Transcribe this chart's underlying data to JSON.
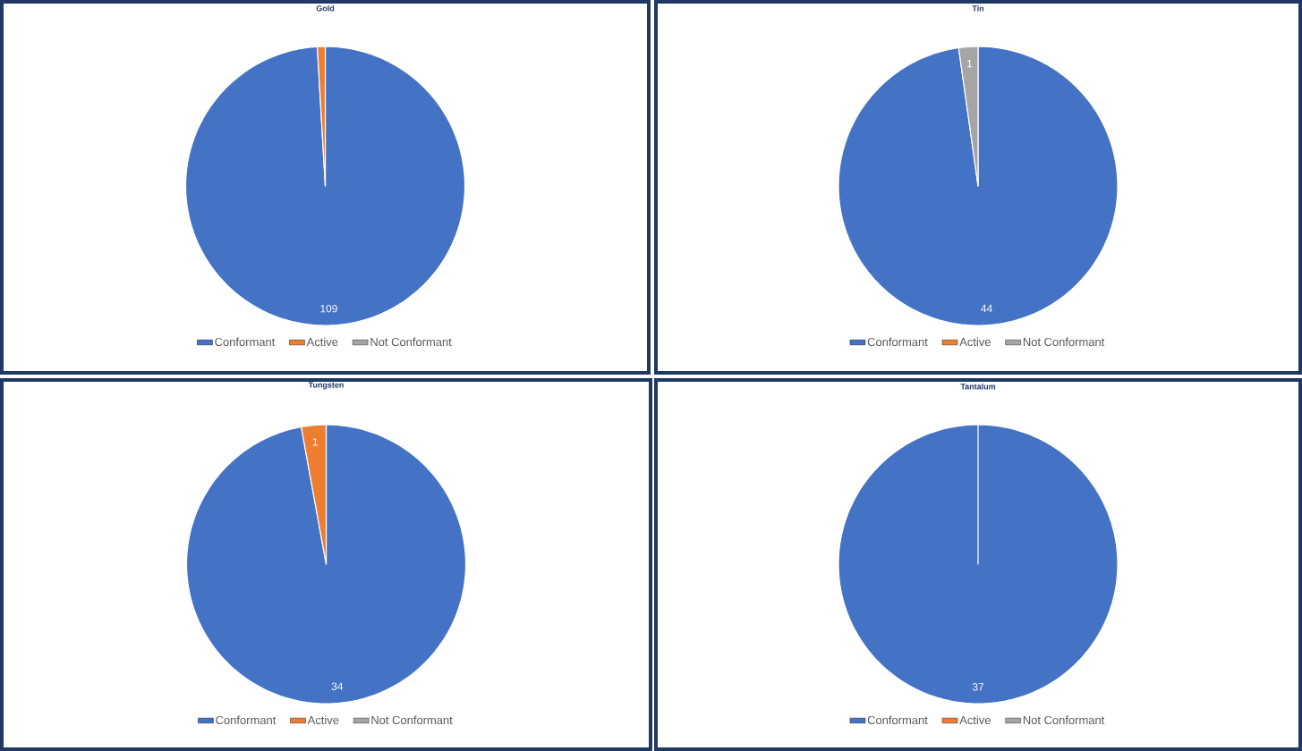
{
  "chart_data": [
    {
      "type": "pie",
      "title": "Gold",
      "categories": [
        "Conformant",
        "Active",
        "Not Conformant"
      ],
      "values": [
        109,
        1,
        0
      ],
      "colors": [
        "#4472c4",
        "#ed7d31",
        "#a5a5a5"
      ],
      "value_labels": [
        "109",
        null,
        null
      ],
      "legend": "bottom"
    },
    {
      "type": "pie",
      "title": "Tin",
      "categories": [
        "Conformant",
        "Active",
        "Not Conformant"
      ],
      "values": [
        44,
        0,
        1
      ],
      "colors": [
        "#4472c4",
        "#ed7d31",
        "#a5a5a5"
      ],
      "value_labels": [
        "44",
        null,
        "1"
      ],
      "legend": "bottom"
    },
    {
      "type": "pie",
      "title": "Tungsten",
      "categories": [
        "Conformant",
        "Active",
        "Not Conformant"
      ],
      "values": [
        34,
        1,
        0
      ],
      "colors": [
        "#4472c4",
        "#ed7d31",
        "#a5a5a5"
      ],
      "value_labels": [
        "34",
        "1",
        null
      ],
      "legend": "bottom"
    },
    {
      "type": "pie",
      "title": "Tantalum",
      "categories": [
        "Conformant",
        "Active",
        "Not Conformant"
      ],
      "values": [
        37,
        0,
        0
      ],
      "colors": [
        "#4472c4",
        "#ed7d31",
        "#a5a5a5"
      ],
      "value_labels": [
        "37",
        null,
        null
      ],
      "legend": "bottom"
    }
  ]
}
